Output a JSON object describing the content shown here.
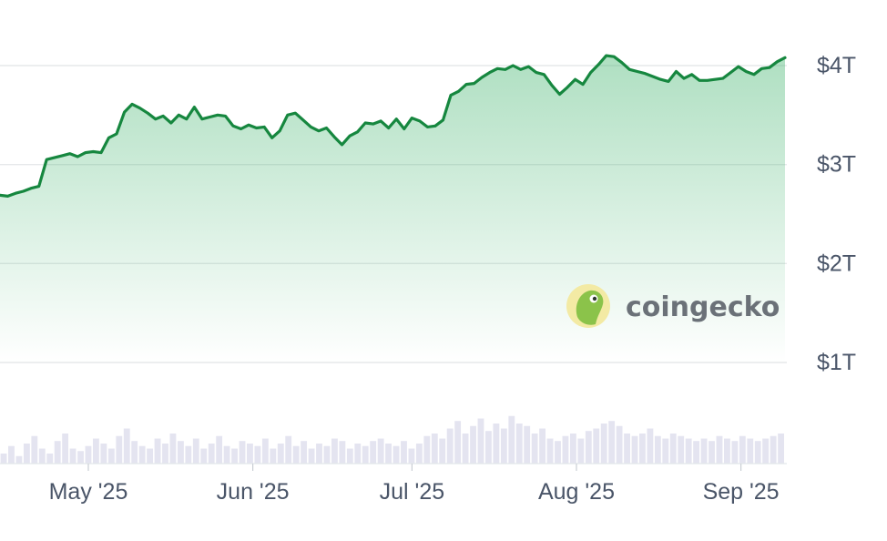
{
  "chart_data": {
    "type": "area",
    "title": "",
    "xlabel": "",
    "ylabel": "",
    "ylim": [
      0,
      4.3
    ],
    "y_ticks": [
      {
        "value": 1,
        "label": "$1T"
      },
      {
        "value": 2,
        "label": "$2T"
      },
      {
        "value": 3,
        "label": "$3T"
      },
      {
        "value": 4,
        "label": "$4T"
      }
    ],
    "x_ticks": [
      {
        "day": 10,
        "label": "May '25"
      },
      {
        "day": 41,
        "label": "Jun '25"
      },
      {
        "day": 71,
        "label": "Jul '25"
      },
      {
        "day": 102,
        "label": "Aug '25"
      },
      {
        "day": 133,
        "label": "Sep '25"
      }
    ],
    "grid": true,
    "line_color": "#16873f",
    "area_color": "#3fb36c",
    "volume_color": "#e4e4f0",
    "series": [
      {
        "values": [
          2.69,
          2.68,
          2.71,
          2.73,
          2.76,
          2.78,
          3.05,
          3.07,
          3.09,
          3.11,
          3.08,
          3.12,
          3.13,
          3.12,
          3.27,
          3.31,
          3.53,
          3.61,
          3.57,
          3.52,
          3.46,
          3.49,
          3.42,
          3.5,
          3.46,
          3.58,
          3.46,
          3.48,
          3.5,
          3.49,
          3.39,
          3.36,
          3.4,
          3.37,
          3.38,
          3.27,
          3.34,
          3.5,
          3.52,
          3.45,
          3.38,
          3.34,
          3.37,
          3.28,
          3.2,
          3.29,
          3.33,
          3.42,
          3.41,
          3.44,
          3.37,
          3.46,
          3.36,
          3.47,
          3.44,
          3.38,
          3.39,
          3.45,
          3.7,
          3.74,
          3.81,
          3.82,
          3.88,
          3.93,
          3.97,
          3.96,
          4.0,
          3.96,
          3.99,
          3.93,
          3.91,
          3.8,
          3.71,
          3.78,
          3.86,
          3.81,
          3.93,
          4.01,
          4.1,
          4.09,
          4.03,
          3.96,
          3.94,
          3.92,
          3.89,
          3.86,
          3.84,
          3.94,
          3.87,
          3.91,
          3.85,
          3.85,
          3.86,
          3.87,
          3.93,
          3.99,
          3.94,
          3.91,
          3.97,
          3.98,
          4.04,
          4.08
        ]
      }
    ],
    "volume_relative": [
      0.2,
      0.35,
      0.15,
      0.4,
      0.55,
      0.3,
      0.2,
      0.45,
      0.6,
      0.3,
      0.25,
      0.35,
      0.5,
      0.4,
      0.3,
      0.55,
      0.7,
      0.45,
      0.35,
      0.3,
      0.5,
      0.4,
      0.6,
      0.45,
      0.35,
      0.5,
      0.3,
      0.4,
      0.55,
      0.35,
      0.3,
      0.45,
      0.4,
      0.35,
      0.5,
      0.3,
      0.4,
      0.55,
      0.35,
      0.45,
      0.3,
      0.4,
      0.35,
      0.5,
      0.45,
      0.3,
      0.4,
      0.35,
      0.45,
      0.5,
      0.4,
      0.35,
      0.45,
      0.3,
      0.4,
      0.55,
      0.6,
      0.5,
      0.7,
      0.85,
      0.6,
      0.75,
      0.9,
      0.65,
      0.8,
      0.7,
      0.95,
      0.8,
      0.75,
      0.6,
      0.7,
      0.5,
      0.45,
      0.55,
      0.6,
      0.5,
      0.65,
      0.7,
      0.8,
      0.85,
      0.75,
      0.6,
      0.55,
      0.6,
      0.7,
      0.55,
      0.5,
      0.6,
      0.55,
      0.5,
      0.45,
      0.5,
      0.45,
      0.55,
      0.5,
      0.45,
      0.55,
      0.5,
      0.45,
      0.5,
      0.55,
      0.6
    ],
    "watermark": "coingecko"
  }
}
